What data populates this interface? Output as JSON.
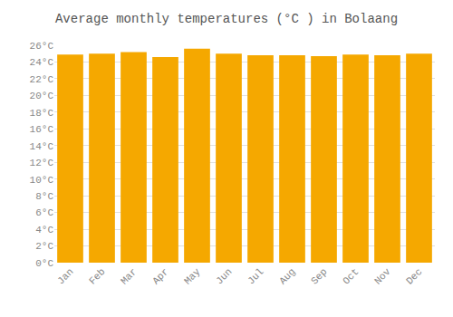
{
  "chart_data": {
    "type": "bar",
    "title": "Average monthly temperatures (°C ) in Bolaang",
    "categories": [
      "Jan",
      "Feb",
      "Mar",
      "Apr",
      "May",
      "Jun",
      "Jul",
      "Aug",
      "Sep",
      "Oct",
      "Nov",
      "Dec"
    ],
    "values": [
      24.9,
      25.0,
      25.2,
      24.6,
      25.6,
      25.0,
      24.8,
      24.8,
      24.7,
      24.9,
      24.8,
      25.0
    ],
    "color": "#F5A800",
    "ylim": [
      0,
      26
    ],
    "yticks": [
      {
        "value": 0,
        "label": "0°C"
      },
      {
        "value": 2,
        "label": "2°C"
      },
      {
        "value": 4,
        "label": "4°C"
      },
      {
        "value": 6,
        "label": "6°C"
      },
      {
        "value": 8,
        "label": "8°C"
      },
      {
        "value": 10,
        "label": "10°C"
      },
      {
        "value": 12,
        "label": "12°C"
      },
      {
        "value": 14,
        "label": "14°C"
      },
      {
        "value": 16,
        "label": "16°C"
      },
      {
        "value": 18,
        "label": "18°C"
      },
      {
        "value": 20,
        "label": "20°C"
      },
      {
        "value": 22,
        "label": "22°C"
      },
      {
        "value": 24,
        "label": "24°C"
      },
      {
        "value": 26,
        "label": "26°C"
      }
    ],
    "grid": true
  }
}
